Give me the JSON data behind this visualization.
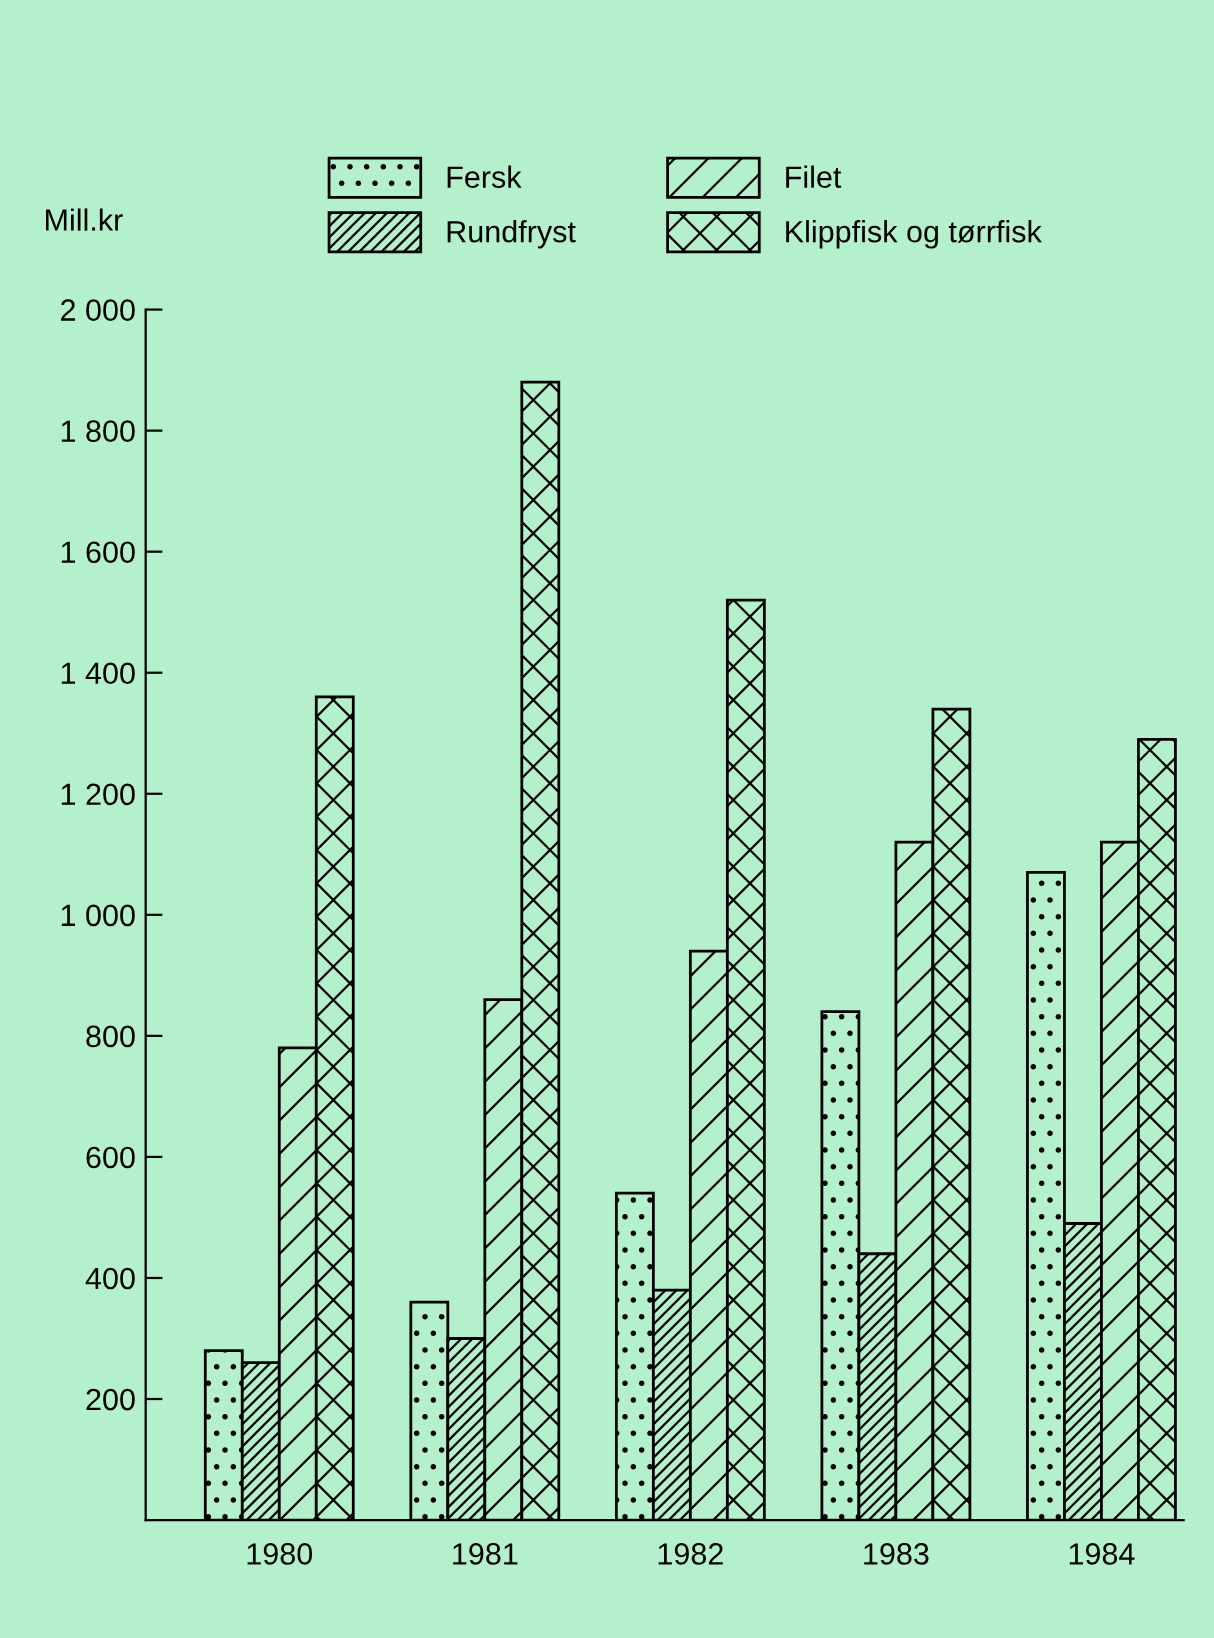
{
  "chart_data": {
    "type": "bar",
    "ylabel": "Mill.kr",
    "categories": [
      "1980",
      "1981",
      "1982",
      "1983",
      "1984"
    ],
    "series": [
      {
        "name": "Fersk",
        "color": "#000000",
        "values": [
          280,
          360,
          540,
          840,
          1070
        ]
      },
      {
        "name": "Rundfryst",
        "color": "#000000",
        "values": [
          260,
          300,
          380,
          440,
          490
        ]
      },
      {
        "name": "Filet",
        "color": "#000000",
        "values": [
          780,
          860,
          940,
          1120,
          1120
        ]
      },
      {
        "name": "Klippfisk og tørrfisk",
        "color": "#000000",
        "values": [
          1360,
          1880,
          1520,
          1340,
          1290
        ]
      }
    ],
    "ylim": [
      0,
      2000
    ],
    "yticks": [
      {
        "value": 200,
        "label": "200"
      },
      {
        "value": 400,
        "label": "400"
      },
      {
        "value": 600,
        "label": "600"
      },
      {
        "value": 800,
        "label": "800"
      },
      {
        "value": 1000,
        "label": "1 000"
      },
      {
        "value": 1200,
        "label": "1 200"
      },
      {
        "value": 1400,
        "label": "1 400"
      },
      {
        "value": 1600,
        "label": "1 600"
      },
      {
        "value": 1800,
        "label": "1 800"
      },
      {
        "value": 2000,
        "label": "2 000"
      }
    ],
    "grid": false,
    "legend": "top"
  }
}
